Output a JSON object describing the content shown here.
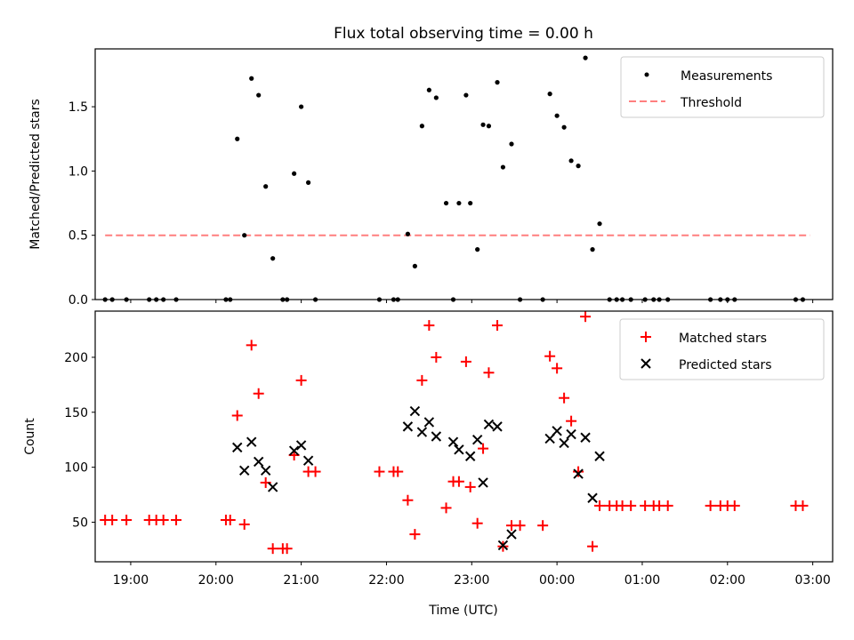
{
  "chart_data": [
    {
      "type": "scatter",
      "title": "Flux total observing time = 0.00 h",
      "xlabel": "",
      "ylabel": "Matched/Predicted stars",
      "ylim": [
        0,
        1.95
      ],
      "xlim": [
        "18:35",
        "03:14"
      ],
      "yticks": [
        "0.0",
        "0.5",
        "1.0",
        "1.5"
      ],
      "grid": false,
      "legend_position": "top-right",
      "legend": [
        "Measurements",
        "Threshold"
      ],
      "colors": {
        "measurements": "#000000",
        "threshold": "#ff7f7f"
      },
      "threshold": {
        "value": 0.5,
        "x_start": "18:42",
        "x_end": "02:58"
      },
      "series": [
        {
          "name": "Measurements",
          "points": [
            [
              "18:42",
              0
            ],
            [
              "18:47",
              0
            ],
            [
              "18:57",
              0
            ],
            [
              "19:13",
              0
            ],
            [
              "19:18",
              0
            ],
            [
              "19:23",
              0
            ],
            [
              "19:32",
              0
            ],
            [
              "20:07",
              0
            ],
            [
              "20:10",
              0
            ],
            [
              "20:15",
              1.25
            ],
            [
              "20:20",
              0.5
            ],
            [
              "20:25",
              1.72
            ],
            [
              "20:30",
              1.59
            ],
            [
              "20:35",
              0.88
            ],
            [
              "20:40",
              0.32
            ],
            [
              "20:47",
              0
            ],
            [
              "20:50",
              0
            ],
            [
              "20:55",
              0.98
            ],
            [
              "21:00",
              1.5
            ],
            [
              "21:05",
              0.91
            ],
            [
              "21:10",
              0
            ],
            [
              "21:55",
              0
            ],
            [
              "22:05",
              0
            ],
            [
              "22:08",
              0
            ],
            [
              "22:15",
              0.51
            ],
            [
              "22:20",
              0.26
            ],
            [
              "22:25",
              1.35
            ],
            [
              "22:30",
              1.63
            ],
            [
              "22:35",
              1.57
            ],
            [
              "22:42",
              0.75
            ],
            [
              "22:47",
              0
            ],
            [
              "22:51",
              0.75
            ],
            [
              "22:56",
              1.59
            ],
            [
              "22:59",
              0.75
            ],
            [
              "23:04",
              0.39
            ],
            [
              "23:08",
              1.36
            ],
            [
              "23:12",
              1.35
            ],
            [
              "23:18",
              1.69
            ],
            [
              "23:22",
              1.03
            ],
            [
              "23:28",
              1.21
            ],
            [
              "23:34",
              0
            ],
            [
              "23:50",
              0
            ],
            [
              "23:55",
              1.6
            ],
            [
              "00:00",
              1.43
            ],
            [
              "00:05",
              1.34
            ],
            [
              "00:10",
              1.08
            ],
            [
              "00:15",
              1.04
            ],
            [
              "00:20",
              1.88
            ],
            [
              "00:25",
              0.39
            ],
            [
              "00:30",
              0.59
            ],
            [
              "00:37",
              0
            ],
            [
              "00:42",
              0
            ],
            [
              "00:46",
              0
            ],
            [
              "00:52",
              0
            ],
            [
              "01:02",
              0
            ],
            [
              "01:08",
              0
            ],
            [
              "01:12",
              0
            ],
            [
              "01:18",
              0
            ],
            [
              "01:48",
              0
            ],
            [
              "01:55",
              0
            ],
            [
              "02:00",
              0
            ],
            [
              "02:05",
              0
            ],
            [
              "02:48",
              0
            ],
            [
              "02:53",
              0
            ]
          ]
        }
      ]
    },
    {
      "type": "scatter",
      "title": "",
      "xlabel": "Time (UTC)",
      "ylabel": "Count",
      "ylim": [
        14,
        242
      ],
      "xlim": [
        "18:35",
        "03:14"
      ],
      "yticks": [
        "50",
        "100",
        "150",
        "200"
      ],
      "xticks": [
        "19:00",
        "20:00",
        "21:00",
        "22:00",
        "23:00",
        "00:00",
        "01:00",
        "02:00",
        "03:00"
      ],
      "grid": false,
      "legend_position": "top-right",
      "legend": [
        "Matched stars",
        "Predicted stars"
      ],
      "colors": {
        "matched": "#ff0000",
        "predicted": "#000000"
      },
      "series": [
        {
          "name": "Matched stars",
          "points": [
            [
              "18:42",
              52
            ],
            [
              "18:47",
              52
            ],
            [
              "18:57",
              52
            ],
            [
              "19:13",
              52
            ],
            [
              "19:18",
              52
            ],
            [
              "19:23",
              52
            ],
            [
              "19:32",
              52
            ],
            [
              "20:07",
              52
            ],
            [
              "20:10",
              52
            ],
            [
              "20:15",
              147
            ],
            [
              "20:20",
              48
            ],
            [
              "20:25",
              211
            ],
            [
              "20:30",
              167
            ],
            [
              "20:35",
              86
            ],
            [
              "20:40",
              26
            ],
            [
              "20:47",
              26
            ],
            [
              "20:50",
              26
            ],
            [
              "20:55",
              111
            ],
            [
              "21:00",
              179
            ],
            [
              "21:05",
              96
            ],
            [
              "21:10",
              96
            ],
            [
              "21:55",
              96
            ],
            [
              "22:05",
              96
            ],
            [
              "22:08",
              96
            ],
            [
              "22:15",
              70
            ],
            [
              "22:20",
              39
            ],
            [
              "22:25",
              179
            ],
            [
              "22:30",
              229
            ],
            [
              "22:35",
              200
            ],
            [
              "22:42",
              63
            ],
            [
              "22:47",
              87
            ],
            [
              "22:51",
              87
            ],
            [
              "22:56",
              196
            ],
            [
              "22:59",
              82
            ],
            [
              "23:04",
              49
            ],
            [
              "23:08",
              117
            ],
            [
              "23:12",
              186
            ],
            [
              "23:18",
              229
            ],
            [
              "23:22",
              28
            ],
            [
              "23:28",
              47
            ],
            [
              "23:34",
              47
            ],
            [
              "23:50",
              47
            ],
            [
              "23:55",
              201
            ],
            [
              "00:00",
              190
            ],
            [
              "00:05",
              163
            ],
            [
              "00:10",
              142
            ],
            [
              "00:15",
              96
            ],
            [
              "00:20",
              237
            ],
            [
              "00:25",
              28
            ],
            [
              "00:30",
              65
            ],
            [
              "00:37",
              65
            ],
            [
              "00:42",
              65
            ],
            [
              "00:46",
              65
            ],
            [
              "00:52",
              65
            ],
            [
              "01:02",
              65
            ],
            [
              "01:08",
              65
            ],
            [
              "01:12",
              65
            ],
            [
              "01:18",
              65
            ],
            [
              "01:48",
              65
            ],
            [
              "01:55",
              65
            ],
            [
              "02:00",
              65
            ],
            [
              "02:05",
              65
            ],
            [
              "02:48",
              65
            ],
            [
              "02:53",
              65
            ]
          ]
        },
        {
          "name": "Predicted stars",
          "points": [
            [
              "20:15",
              118
            ],
            [
              "20:20",
              97
            ],
            [
              "20:25",
              123
            ],
            [
              "20:30",
              105
            ],
            [
              "20:35",
              97
            ],
            [
              "20:40",
              82
            ],
            [
              "20:55",
              115
            ],
            [
              "21:00",
              120
            ],
            [
              "21:05",
              106
            ],
            [
              "22:15",
              137
            ],
            [
              "22:20",
              151
            ],
            [
              "22:25",
              132
            ],
            [
              "22:30",
              141
            ],
            [
              "22:35",
              128
            ],
            [
              "22:47",
              123
            ],
            [
              "22:51",
              116
            ],
            [
              "22:59",
              110
            ],
            [
              "23:04",
              125
            ],
            [
              "23:08",
              86
            ],
            [
              "23:12",
              139
            ],
            [
              "23:18",
              137
            ],
            [
              "23:22",
              29
            ],
            [
              "23:28",
              39
            ],
            [
              "23:55",
              126
            ],
            [
              "00:00",
              133
            ],
            [
              "00:05",
              122
            ],
            [
              "00:10",
              130
            ],
            [
              "00:15",
              94
            ],
            [
              "00:20",
              127
            ],
            [
              "00:25",
              72
            ],
            [
              "00:30",
              110
            ]
          ]
        }
      ]
    }
  ]
}
